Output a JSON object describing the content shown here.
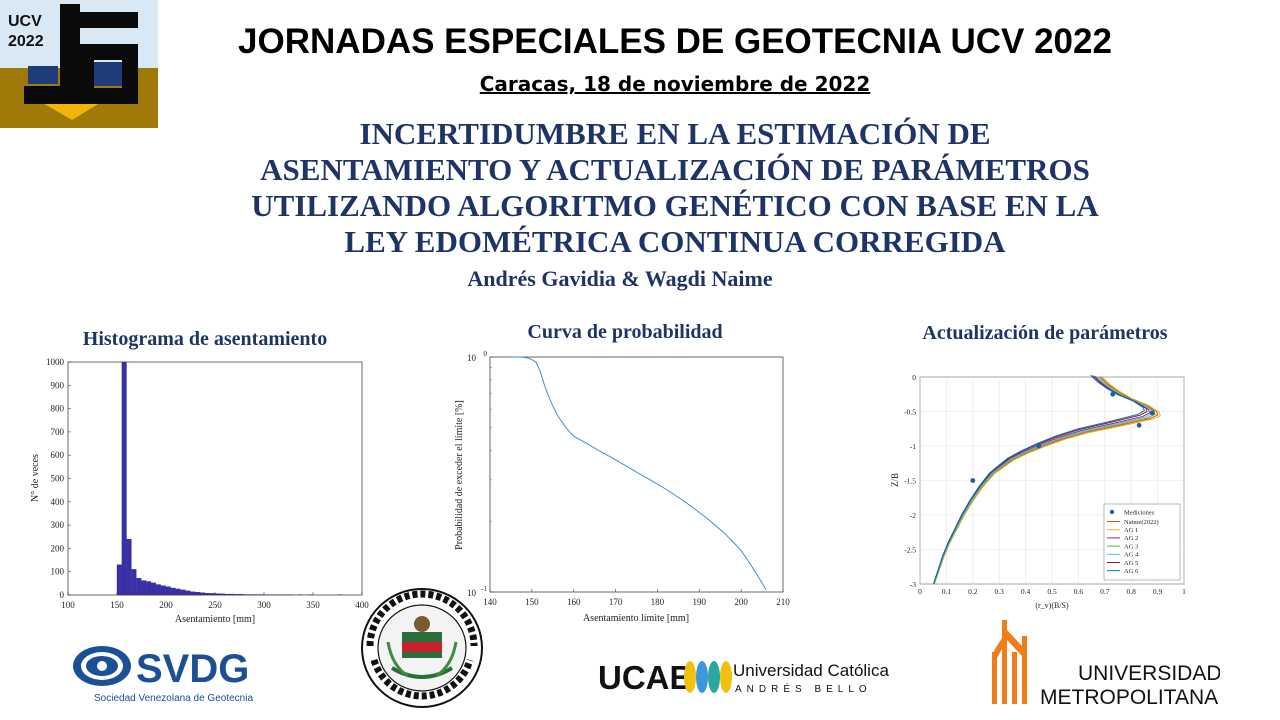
{
  "header": {
    "logo_text": [
      "UCV",
      "2022"
    ],
    "conference_title": "JORNADAS ESPECIALES DE GEOTECNIA UCV 2022",
    "date_line": "Caracas, 18 de noviembre de 2022",
    "paper_title_lines": [
      "INCERTIDUMBRE EN LA ESTIMACIÓN DE",
      "ASENTAMIENTO Y ACTUALIZACIÓN DE PARÁMETROS",
      "UTILIZANDO ALGORITMO GENÉTICO CON BASE EN LA",
      "LEY EDOMÉTRICA CONTINUA CORREGIDA"
    ],
    "authors": "Andrés Gavidia & Wagdi Naime"
  },
  "colors": {
    "title_blue": "#1f3466",
    "histogram_bar": "#3a2fa8",
    "probability_line": "#3e8fce",
    "svdg_blue": "#1b4f96",
    "unimet_orange": "#f07c1a"
  },
  "chart_data": [
    {
      "type": "bar",
      "title": "Histograma de asentamiento",
      "xlabel": "Asentamiento [mm]",
      "ylabel": "N° de veces",
      "xlim": [
        100,
        400
      ],
      "ylim": [
        0,
        1000
      ],
      "xticks": [
        100,
        150,
        200,
        250,
        300,
        350,
        400
      ],
      "yticks": [
        0,
        100,
        200,
        300,
        400,
        500,
        600,
        700,
        800,
        900,
        1000
      ],
      "bin_width": 5,
      "bin_starts": [
        150,
        155,
        160,
        165,
        170,
        175,
        180,
        185,
        190,
        195,
        200,
        205,
        210,
        215,
        220,
        225,
        230,
        235,
        240,
        245,
        250,
        255,
        260,
        265,
        270,
        275,
        280,
        285,
        290,
        295,
        300,
        305,
        310,
        315,
        320,
        325,
        330,
        335,
        340,
        345,
        350,
        355,
        360,
        365,
        370,
        375
      ],
      "values": [
        130,
        1000,
        240,
        110,
        72,
        62,
        58,
        52,
        45,
        40,
        36,
        30,
        26,
        22,
        18,
        14,
        12,
        10,
        8,
        7,
        6,
        5,
        4,
        4,
        3,
        3,
        2,
        2,
        2,
        2,
        1,
        1,
        1,
        1,
        1,
        1,
        0,
        1,
        0,
        1,
        0,
        0,
        0,
        0,
        0,
        1
      ]
    },
    {
      "type": "line",
      "title": "Curva de probabilidad",
      "xlabel": "Asentamiento límite [mm]",
      "ylabel": "Probabilidad de exceder el límite [%]",
      "yscale": "log",
      "xlim": [
        140,
        210
      ],
      "ylim": [
        0.1,
        1
      ],
      "xticks": [
        140,
        150,
        160,
        170,
        180,
        190,
        200,
        210
      ],
      "ytick_labels": [
        "10^0",
        "10^-1"
      ],
      "x": [
        145,
        146,
        147,
        148,
        149,
        150,
        151,
        152,
        153,
        154,
        155,
        156,
        157,
        158,
        159,
        160,
        162,
        164,
        166,
        168,
        170,
        172,
        174,
        176,
        178,
        180,
        182,
        184,
        186,
        188,
        190,
        192,
        194,
        196,
        198,
        200,
        202,
        204,
        206
      ],
      "y": [
        1.0,
        1.0,
        1.0,
        0.997,
        0.99,
        0.975,
        0.95,
        0.87,
        0.76,
        0.68,
        0.62,
        0.57,
        0.535,
        0.505,
        0.48,
        0.46,
        0.44,
        0.42,
        0.4,
        0.382,
        0.365,
        0.348,
        0.332,
        0.316,
        0.302,
        0.288,
        0.274,
        0.26,
        0.246,
        0.232,
        0.218,
        0.205,
        0.191,
        0.178,
        0.164,
        0.15,
        0.133,
        0.117,
        0.102
      ]
    },
    {
      "type": "line",
      "title": "Actualización de parámetros",
      "xlabel": "(r_v)(B/S)",
      "ylabel": "Z/B",
      "xlim": [
        0,
        1
      ],
      "ylim": [
        -3,
        0
      ],
      "xticks": [
        0,
        0.1,
        0.2,
        0.3,
        0.4,
        0.5,
        0.6,
        0.7,
        0.8,
        0.9,
        1
      ],
      "yticks": [
        0,
        -0.5,
        -1,
        -1.5,
        -2,
        -2.5,
        -3
      ],
      "grid": true,
      "legend": "bottom-right",
      "measurements": {
        "name": "Mediciones",
        "x": [
          0.73,
          0.88,
          0.83,
          0.45,
          0.2
        ],
        "y": [
          -0.25,
          -0.52,
          -0.7,
          -1.0,
          -1.5
        ]
      },
      "series": [
        {
          "name": "Naime(2022)",
          "color": "#d95319",
          "peak": 0.9,
          "peak_z": -0.55
        },
        {
          "name": "AG 1",
          "color": "#edb120",
          "peak": 0.91,
          "peak_z": -0.56
        },
        {
          "name": "AG 2",
          "color": "#7e2f8e",
          "peak": 0.87,
          "peak_z": -0.52
        },
        {
          "name": "AG 3",
          "color": "#77ac30",
          "peak": 0.89,
          "peak_z": -0.54
        },
        {
          "name": "AG 4",
          "color": "#4dbeee",
          "peak": 0.88,
          "peak_z": -0.53
        },
        {
          "name": "AG 5",
          "color": "#a2142f",
          "peak": 0.86,
          "peak_z": -0.5
        },
        {
          "name": "AG 6",
          "color": "#0072bd",
          "peak": 0.85,
          "peak_z": -0.49
        }
      ],
      "curve_z": [
        0,
        -0.1,
        -0.2,
        -0.3,
        -0.4,
        -0.5,
        -0.55,
        -0.6,
        -0.7,
        -0.8,
        -0.9,
        -1.0,
        -1.1,
        -1.2,
        -1.4,
        -1.6,
        -1.8,
        -2.0,
        -2.2,
        -2.4,
        -2.6,
        -2.8,
        -3.0
      ],
      "curve_shape": [
        0.76,
        0.79,
        0.83,
        0.88,
        0.95,
        0.995,
        1.0,
        0.97,
        0.84,
        0.7,
        0.6,
        0.52,
        0.45,
        0.39,
        0.31,
        0.26,
        0.22,
        0.185,
        0.155,
        0.125,
        0.1,
        0.08,
        0.06
      ]
    }
  ],
  "logos": {
    "svdg": {
      "name": "SVDG",
      "caption": "Sociedad Venezolana de Geotecnia"
    },
    "ucv_seal": {
      "text": "UNIVERSIDAD CENTRAL · CARACAS · VENEZUELA"
    },
    "ucab": {
      "name": "UCAB",
      "line1": "Universidad Católica",
      "line2": "ANDRÉS BELLO"
    },
    "unimet": {
      "line1": "UNIVERSIDAD",
      "line2": "METROPOLITANA"
    }
  }
}
